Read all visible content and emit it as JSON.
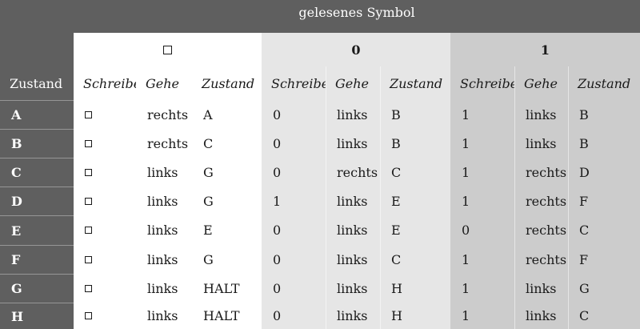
{
  "header": {
    "title": "gelesenes Symbol",
    "symbols": [
      "□",
      "0",
      "1"
    ],
    "row_label": "Zustand",
    "sub_headers": [
      "Schreibe",
      "Gehe",
      "Zustand"
    ]
  },
  "rows": [
    {
      "state": "A",
      "cells": [
        "□",
        "rechts",
        "A",
        "0",
        "links",
        "B",
        "1",
        "links",
        "B"
      ]
    },
    {
      "state": "B",
      "cells": [
        "□",
        "rechts",
        "C",
        "0",
        "links",
        "B",
        "1",
        "links",
        "B"
      ]
    },
    {
      "state": "C",
      "cells": [
        "□",
        "links",
        "G",
        "0",
        "rechts",
        "C",
        "1",
        "rechts",
        "D"
      ]
    },
    {
      "state": "D",
      "cells": [
        "□",
        "links",
        "G",
        "1",
        "links",
        "E",
        "1",
        "rechts",
        "F"
      ]
    },
    {
      "state": "E",
      "cells": [
        "□",
        "links",
        "E",
        "0",
        "links",
        "E",
        "0",
        "rechts",
        "C"
      ]
    },
    {
      "state": "F",
      "cells": [
        "□",
        "links",
        "G",
        "0",
        "links",
        "C",
        "1",
        "rechts",
        "F"
      ]
    },
    {
      "state": "G",
      "cells": [
        "□",
        "links",
        "HALT",
        "0",
        "links",
        "H",
        "1",
        "links",
        "G"
      ]
    },
    {
      "state": "H",
      "cells": [
        "□",
        "links",
        "HALT",
        "0",
        "links",
        "H",
        "1",
        "links",
        "C"
      ]
    }
  ]
}
